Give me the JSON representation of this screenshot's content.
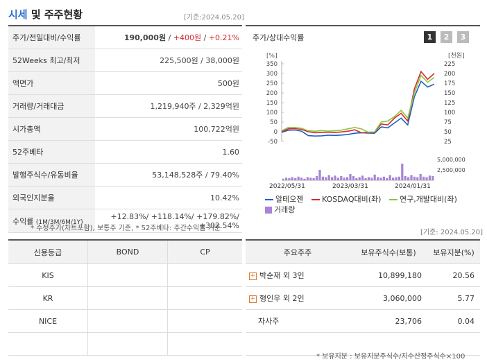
{
  "header": {
    "title_accent": "시세",
    "title_rest": "및 주주현황",
    "base_date": "[기준:2024.05.20]"
  },
  "summary": [
    {
      "label": "주가/전일대비/수익률",
      "price": "190,000원",
      "sep1": " / ",
      "change": "+400원",
      "sep2": " / ",
      "rate": "+0.21%"
    },
    {
      "label": "52Weeks 최고/최저",
      "value": "225,500원 / 38,000원"
    },
    {
      "label": "액면가",
      "value": "500원"
    },
    {
      "label": "거래량/거래대금",
      "value": "1,219,940주 / 2,329억원"
    },
    {
      "label": "시가총액",
      "value": "100,722억원"
    },
    {
      "label": "52주베타",
      "value": "1.60"
    },
    {
      "label": "발행주식수/유동비율",
      "value": "53,148,528주 / 79.40%"
    },
    {
      "label": "외국인지분율",
      "value": "10.42%"
    },
    {
      "label": "수익률",
      "sub": "(1M/3M/6M/1Y)",
      "line1": "+12.83%/ +118.14%/ +179.82%/",
      "line2": "+302.54%"
    }
  ],
  "summary_note": "* 수정주가(차트포함), 보통주 기준, * 52주베타: 주간수익률 기준",
  "chart_panel": {
    "title": "주가/상대수익률",
    "tabs": [
      "1",
      "2",
      "3"
    ],
    "active_tab": "1",
    "base_date": "[기준: 2024.05.20]"
  },
  "chart_data": {
    "type": "line",
    "left_axis_unit": "[%]",
    "right_axis_unit": "[천원]",
    "left_ticks": [
      "350",
      "300",
      "250",
      "200",
      "150",
      "100",
      "50",
      "0",
      "-50"
    ],
    "right_ticks": [
      "225",
      "200",
      "175",
      "150",
      "125",
      "100",
      "75",
      "50",
      "25"
    ],
    "volume_ticks": [
      "5,000,000",
      "2,500,000",
      "0"
    ],
    "x_ticks": [
      "2022/05/31",
      "2023/03/31",
      "2024/01/31"
    ],
    "ylim_left": [
      -50,
      350
    ],
    "series": [
      {
        "name": "알테오젠",
        "color": "#1f5fbf",
        "values": [
          -3,
          8,
          9,
          3,
          -20,
          -22,
          -21,
          -18,
          -19,
          -17,
          -14,
          -8,
          -5,
          -7,
          -8,
          25,
          20,
          45,
          70,
          35,
          180,
          260,
          230,
          245
        ]
      },
      {
        "name": "KOSDAQ대비(좌)",
        "color": "#d4292f",
        "values": [
          0,
          15,
          16,
          12,
          0,
          -5,
          -4,
          -2,
          -4,
          -1,
          3,
          10,
          -5,
          -4,
          -3,
          40,
          35,
          70,
          95,
          55,
          220,
          310,
          270,
          300
        ]
      },
      {
        "name": "연구,개발대비(좌)",
        "color": "#8cc63f",
        "values": [
          5,
          22,
          22,
          18,
          5,
          3,
          6,
          3,
          5,
          8,
          15,
          22,
          15,
          -2,
          -1,
          50,
          55,
          78,
          110,
          70,
          200,
          290,
          255,
          280
        ]
      }
    ],
    "volume": {
      "name": "거래량",
      "color": "#a883d8",
      "values": [
        0.15,
        0.25,
        0.2,
        0.3,
        0.2,
        0.35,
        0.25,
        0.15,
        0.3,
        0.25,
        0.2,
        0.4,
        1.0,
        0.35,
        0.3,
        0.5,
        0.3,
        0.45,
        0.25,
        0.4,
        0.25,
        0.3,
        0.6,
        0.4,
        0.2,
        0.3,
        0.45,
        0.2,
        0.3,
        0.25,
        0.55,
        0.3,
        0.25,
        0.35,
        0.2,
        0.5,
        0.25,
        0.3,
        0.35,
        1.6,
        0.4,
        0.3,
        0.5,
        0.35,
        0.3,
        0.6,
        0.35,
        0.3,
        0.45,
        0.4
      ]
    }
  },
  "credit": {
    "headers": [
      "신용등급",
      "BOND",
      "CP"
    ],
    "rows": [
      [
        "KIS",
        "",
        ""
      ],
      [
        "KR",
        "",
        ""
      ],
      [
        "NICE",
        "",
        ""
      ],
      [
        "",
        "",
        ""
      ]
    ]
  },
  "holders": {
    "headers": [
      "주요주주",
      "보유주식수(보통)",
      "보유지분(%)"
    ],
    "rows": [
      {
        "name": "박순재 외 3인",
        "expand": true,
        "shares": "10,899,180",
        "pct": "20.56"
      },
      {
        "name": "형인우 외 2인",
        "expand": true,
        "shares": "3,060,000",
        "pct": "5.77"
      },
      {
        "name": "자사주",
        "expand": false,
        "shares": "23,706",
        "pct": "0.04"
      },
      {
        "name": "",
        "expand": false,
        "shares": "",
        "pct": ""
      }
    ],
    "plus_symbol": "+",
    "note": "* 보유지분 : 보유지분주식수/지수산정주식수×100"
  }
}
